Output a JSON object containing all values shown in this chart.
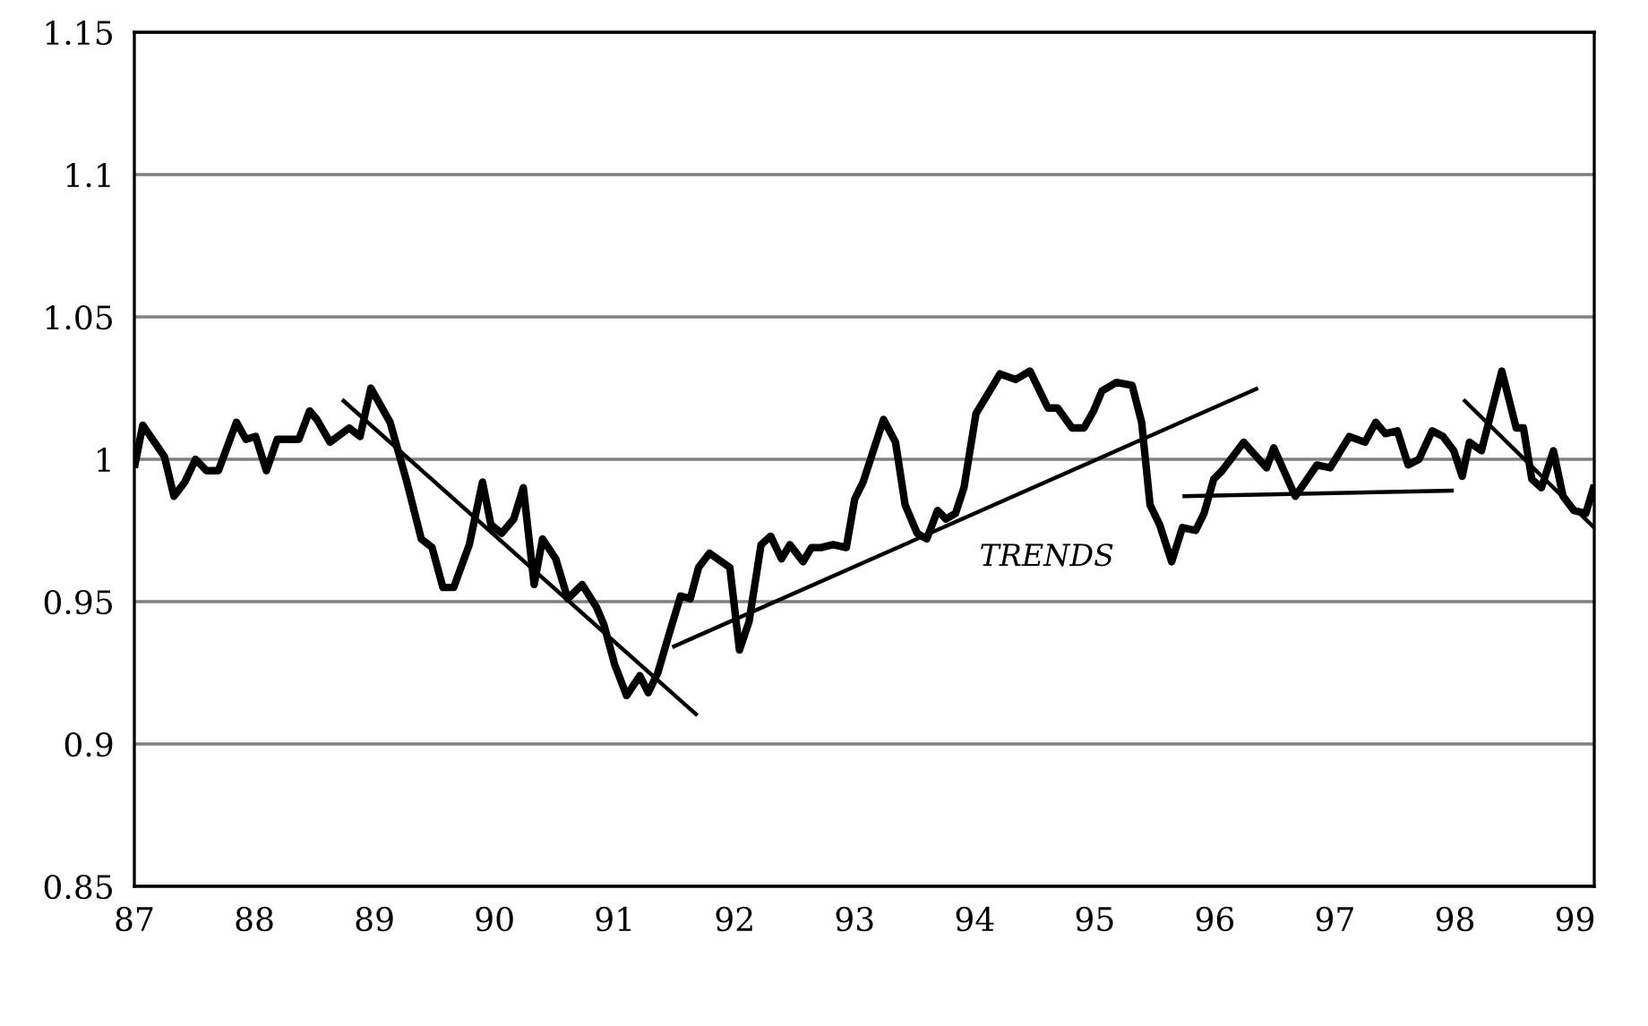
{
  "chart_data": {
    "type": "line",
    "xlim": [
      87,
      99.16
    ],
    "xticks": [
      87,
      88,
      89,
      90,
      91,
      92,
      93,
      94,
      95,
      96,
      97,
      98,
      99
    ],
    "ylim": [
      0.85,
      1.15
    ],
    "yticks": [
      0.85,
      0.9,
      0.95,
      1,
      1.05,
      1.1,
      1.15
    ],
    "grid": "y",
    "marker": "none",
    "line_style": "solid",
    "annotations": [
      "TRENDS"
    ],
    "series": [
      {
        "color": "#000000",
        "x": [
          87.0,
          87.07,
          87.25,
          87.33,
          87.42,
          87.51,
          87.6,
          87.7,
          87.85,
          87.93,
          88.01,
          88.1,
          88.19,
          88.37,
          88.46,
          88.52,
          88.63,
          88.79,
          88.88,
          88.97,
          89.13,
          89.27,
          89.39,
          89.48,
          89.57,
          89.66,
          89.79,
          89.9,
          89.97,
          90.06,
          90.16,
          90.24,
          90.33,
          90.4,
          90.51,
          90.61,
          90.73,
          90.85,
          90.91,
          91.0,
          91.1,
          91.21,
          91.28,
          91.36,
          91.45,
          91.55,
          91.63,
          91.7,
          91.79,
          91.96,
          92.04,
          92.12,
          92.22,
          92.3,
          92.39,
          92.46,
          92.57,
          92.64,
          92.72,
          92.82,
          92.93,
          93.0,
          93.07,
          93.24,
          93.34,
          93.42,
          93.52,
          93.6,
          93.69,
          93.76,
          93.84,
          93.91,
          94.01,
          94.21,
          94.34,
          94.46,
          94.61,
          94.69,
          94.81,
          94.91,
          94.99,
          95.06,
          95.18,
          95.31,
          95.39,
          95.46,
          95.54,
          95.64,
          95.73,
          95.84,
          95.91,
          95.99,
          96.06,
          96.24,
          96.43,
          96.49,
          96.67,
          96.85,
          96.96,
          97.12,
          97.25,
          97.34,
          97.42,
          97.52,
          97.61,
          97.7,
          97.81,
          97.9,
          97.99,
          98.06,
          98.12,
          98.22,
          98.39,
          98.51,
          98.57,
          98.64,
          98.72,
          98.82,
          98.9,
          98.99,
          99.09,
          99.16
        ],
        "values": [
          0.997,
          1.012,
          1.001,
          0.987,
          0.992,
          1.0,
          0.996,
          0.996,
          1.013,
          1.007,
          1.008,
          0.996,
          1.007,
          1.007,
          1.017,
          1.014,
          1.006,
          1.011,
          1.008,
          1.025,
          1.013,
          0.992,
          0.972,
          0.969,
          0.955,
          0.955,
          0.97,
          0.992,
          0.977,
          0.974,
          0.979,
          0.99,
          0.956,
          0.972,
          0.965,
          0.951,
          0.956,
          0.948,
          0.942,
          0.928,
          0.917,
          0.924,
          0.918,
          0.925,
          0.938,
          0.952,
          0.951,
          0.962,
          0.967,
          0.962,
          0.933,
          0.943,
          0.97,
          0.973,
          0.965,
          0.97,
          0.964,
          0.969,
          0.969,
          0.97,
          0.969,
          0.986,
          0.992,
          1.014,
          1.006,
          0.984,
          0.974,
          0.972,
          0.982,
          0.979,
          0.981,
          0.99,
          1.016,
          1.03,
          1.028,
          1.031,
          1.018,
          1.018,
          1.011,
          1.011,
          1.017,
          1.024,
          1.027,
          1.026,
          1.013,
          0.984,
          0.977,
          0.964,
          0.976,
          0.975,
          0.981,
          0.993,
          0.996,
          1.006,
          0.997,
          1.004,
          0.987,
          0.998,
          0.997,
          1.008,
          1.006,
          1.013,
          1.009,
          1.01,
          0.998,
          1.0,
          1.01,
          1.008,
          1.003,
          0.994,
          1.006,
          1.003,
          1.031,
          1.011,
          1.011,
          0.993,
          0.99,
          1.003,
          0.987,
          0.982,
          0.981,
          0.991
        ]
      },
      {
        "color": "#000000",
        "x": [
          88.73,
          91.69
        ],
        "values": [
          1.021,
          0.91
        ]
      },
      {
        "color": "#000000",
        "x": [
          91.48,
          96.36
        ],
        "values": [
          0.934,
          1.025
        ]
      },
      {
        "color": "#000000",
        "x": [
          95.73,
          97.99
        ],
        "values": [
          0.987,
          0.989
        ]
      },
      {
        "color": "#000000",
        "x": [
          98.07,
          99.16
        ],
        "values": [
          1.021,
          0.976
        ]
      }
    ]
  }
}
